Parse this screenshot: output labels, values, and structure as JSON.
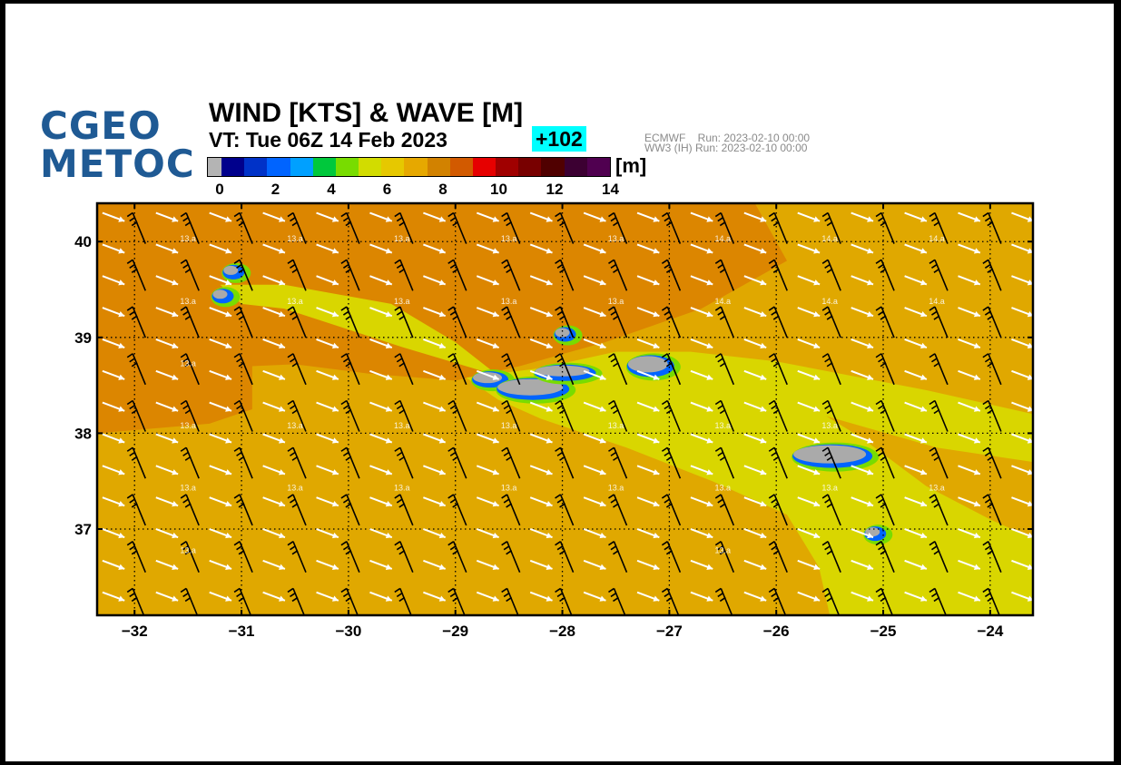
{
  "logo": {
    "line1": "CGEO",
    "line2": "METOC"
  },
  "title": "WIND [KTS] & WAVE [M]",
  "valid_time": "VT:  Tue 06Z 14 Feb 2023",
  "forecast_step": "+102",
  "run_info": {
    "line1": "ECMWF    Run: 2023-02-10 00:00",
    "line2": "WW3 (IH) Run: 2023-02-10 00:00"
  },
  "colorbar": {
    "unit": "[m]",
    "colors": [
      "#b4b4b4",
      "#00008c",
      "#0032c8",
      "#0064ff",
      "#00a0ff",
      "#00c83c",
      "#78dc00",
      "#d2dc00",
      "#e6c800",
      "#e6a800",
      "#d28200",
      "#d25a00",
      "#e60000",
      "#a00000",
      "#780000",
      "#500000",
      "#3c0032",
      "#500050"
    ],
    "tick_labels": [
      "0",
      "2",
      "4",
      "6",
      "8",
      "10",
      "12",
      "14"
    ]
  },
  "chart_data": {
    "type": "heatmap",
    "title": "WIND [KTS] & WAVE [M]",
    "xlim": [
      -32.35,
      -23.6
    ],
    "ylim": [
      36.1,
      40.4
    ],
    "x_ticks": [
      -32,
      -31,
      -30,
      -29,
      -28,
      -27,
      -26,
      -25,
      -24
    ],
    "y_ticks": [
      37,
      38,
      39,
      40
    ],
    "x_tick_labels": [
      "−32",
      "−31",
      "−30",
      "−29",
      "−28",
      "−27",
      "−26",
      "−25",
      "−24"
    ],
    "y_tick_labels": [
      "37",
      "38",
      "39",
      "40"
    ],
    "grid": true,
    "field": "significant wave height [m]",
    "colors": {
      "ocean": "#e0a800",
      "high_wave_region": "#dc8600",
      "lee_region": "#d9d600",
      "land": "#aaaaaa"
    },
    "wind_vector_direction": "WNW to ESE",
    "wind_barb_speed_kts": 30,
    "contour_labels": [
      {
        "lon": -31.5,
        "lat": 40.0,
        "label": "13.a"
      },
      {
        "lon": -30.5,
        "lat": 40.0,
        "label": "13.a"
      },
      {
        "lon": -29.5,
        "lat": 40.0,
        "label": "13.a"
      },
      {
        "lon": -28.5,
        "lat": 40.0,
        "label": "13.a"
      },
      {
        "lon": -27.5,
        "lat": 40.0,
        "label": "13.a"
      },
      {
        "lon": -26.5,
        "lat": 40.0,
        "label": "14.a"
      },
      {
        "lon": -25.5,
        "lat": 40.0,
        "label": "14.a"
      },
      {
        "lon": -24.5,
        "lat": 40.0,
        "label": "14.a"
      },
      {
        "lon": -31.5,
        "lat": 39.35,
        "label": "13.a"
      },
      {
        "lon": -30.5,
        "lat": 39.35,
        "label": "13.a"
      },
      {
        "lon": -29.5,
        "lat": 39.35,
        "label": "13.a"
      },
      {
        "lon": -28.5,
        "lat": 39.35,
        "label": "13.a"
      },
      {
        "lon": -27.5,
        "lat": 39.35,
        "label": "13.a"
      },
      {
        "lon": -26.5,
        "lat": 39.35,
        "label": "14.a"
      },
      {
        "lon": -25.5,
        "lat": 39.35,
        "label": "14.a"
      },
      {
        "lon": -24.5,
        "lat": 39.35,
        "label": "14.a"
      },
      {
        "lon": -31.5,
        "lat": 38.7,
        "label": "13.a"
      },
      {
        "lon": -31.5,
        "lat": 38.05,
        "label": "13.a"
      },
      {
        "lon": -30.5,
        "lat": 38.05,
        "label": "13.a"
      },
      {
        "lon": -29.5,
        "lat": 38.05,
        "label": "13.a"
      },
      {
        "lon": -28.5,
        "lat": 38.05,
        "label": "13.a"
      },
      {
        "lon": -27.5,
        "lat": 38.05,
        "label": "13.a"
      },
      {
        "lon": -26.5,
        "lat": 38.05,
        "label": "13.a"
      },
      {
        "lon": -25.5,
        "lat": 38.05,
        "label": "13.a"
      },
      {
        "lon": -31.5,
        "lat": 37.4,
        "label": "13.a"
      },
      {
        "lon": -30.5,
        "lat": 37.4,
        "label": "13.a"
      },
      {
        "lon": -29.5,
        "lat": 37.4,
        "label": "13.a"
      },
      {
        "lon": -28.5,
        "lat": 37.4,
        "label": "13.a"
      },
      {
        "lon": -27.5,
        "lat": 37.4,
        "label": "13.a"
      },
      {
        "lon": -26.5,
        "lat": 37.4,
        "label": "13.a"
      },
      {
        "lon": -25.5,
        "lat": 37.4,
        "label": "13.a"
      },
      {
        "lon": -24.5,
        "lat": 37.4,
        "label": "13.a"
      },
      {
        "lon": -31.5,
        "lat": 36.75,
        "label": "13.a"
      },
      {
        "lon": -26.5,
        "lat": 36.75,
        "label": "13.a"
      }
    ],
    "islands": [
      {
        "name": "Flores",
        "lon": -31.2,
        "lat": 39.45
      },
      {
        "name": "Corvo",
        "lon": -31.1,
        "lat": 39.7
      },
      {
        "name": "Graciosa",
        "lon": -28.0,
        "lat": 39.05
      },
      {
        "name": "Faial",
        "lon": -28.7,
        "lat": 38.58
      },
      {
        "name": "Pico",
        "lon": -28.3,
        "lat": 38.48
      },
      {
        "name": "Sao Jorge",
        "lon": -28.0,
        "lat": 38.65
      },
      {
        "name": "Terceira",
        "lon": -27.2,
        "lat": 38.72
      },
      {
        "name": "Sao Miguel",
        "lon": -25.5,
        "lat": 37.78
      },
      {
        "name": "Santa Maria",
        "lon": -25.1,
        "lat": 36.97
      }
    ]
  }
}
